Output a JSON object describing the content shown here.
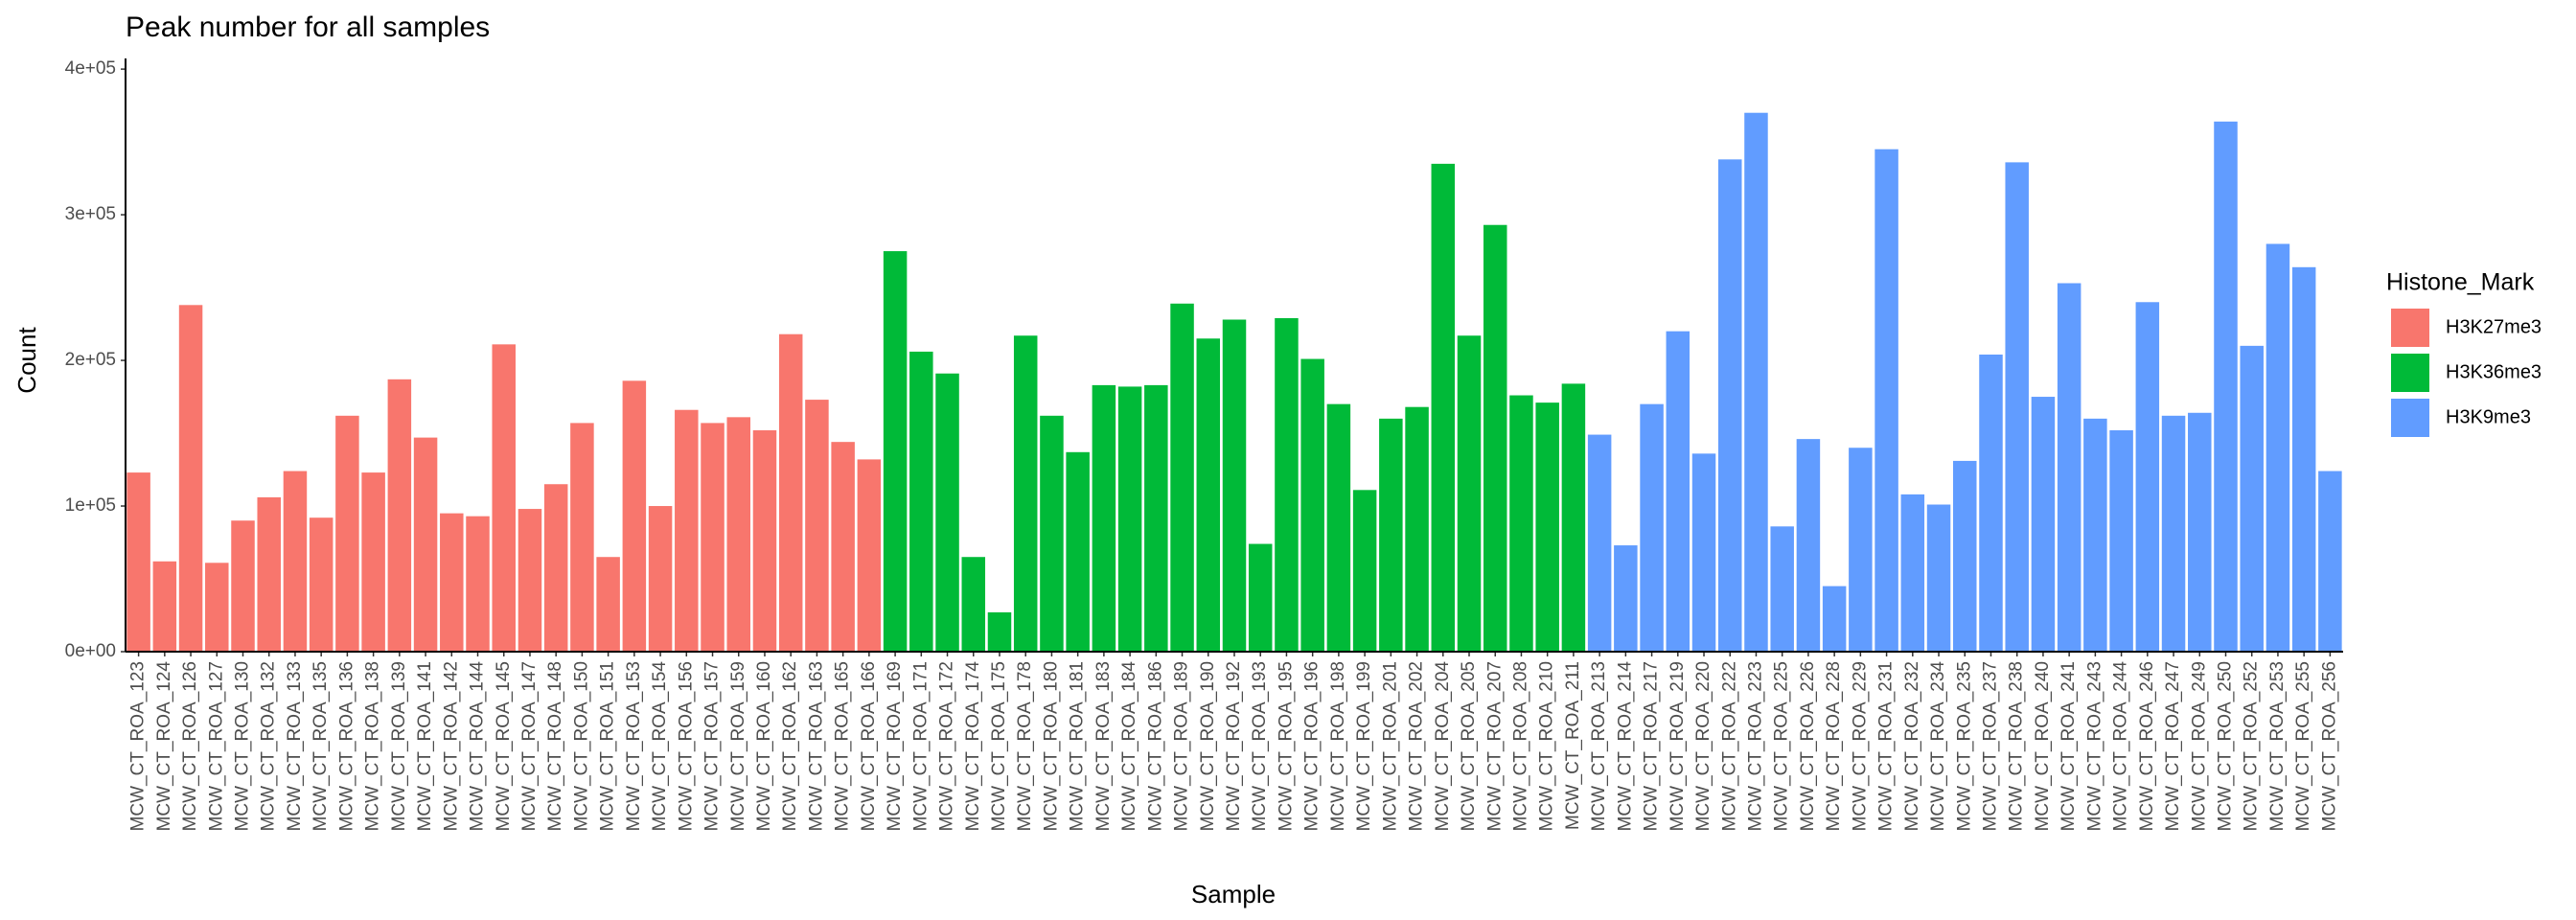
{
  "chart_data": {
    "type": "bar",
    "title": "Peak number for all samples",
    "x_label": "Sample",
    "y_label": "Count",
    "legend_title": "Histone_Mark",
    "legend_position": "right",
    "categories": [
      "MCW_CT_ROA_123",
      "MCW_CT_ROA_124",
      "MCW_CT_ROA_126",
      "MCW_CT_ROA_127",
      "MCW_CT_ROA_130",
      "MCW_CT_ROA_132",
      "MCW_CT_ROA_133",
      "MCW_CT_ROA_135",
      "MCW_CT_ROA_136",
      "MCW_CT_ROA_138",
      "MCW_CT_ROA_139",
      "MCW_CT_ROA_141",
      "MCW_CT_ROA_142",
      "MCW_CT_ROA_144",
      "MCW_CT_ROA_145",
      "MCW_CT_ROA_147",
      "MCW_CT_ROA_148",
      "MCW_CT_ROA_150",
      "MCW_CT_ROA_151",
      "MCW_CT_ROA_153",
      "MCW_CT_ROA_154",
      "MCW_CT_ROA_156",
      "MCW_CT_ROA_157",
      "MCW_CT_ROA_159",
      "MCW_CT_ROA_160",
      "MCW_CT_ROA_162",
      "MCW_CT_ROA_163",
      "MCW_CT_ROA_165",
      "MCW_CT_ROA_166",
      "MCW_CT_ROA_169",
      "MCW_CT_ROA_171",
      "MCW_CT_ROA_172",
      "MCW_CT_ROA_174",
      "MCW_CT_ROA_175",
      "MCW_CT_ROA_178",
      "MCW_CT_ROA_180",
      "MCW_CT_ROA_181",
      "MCW_CT_ROA_183",
      "MCW_CT_ROA_184",
      "MCW_CT_ROA_186",
      "MCW_CT_ROA_189",
      "MCW_CT_ROA_190",
      "MCW_CT_ROA_192",
      "MCW_CT_ROA_193",
      "MCW_CT_ROA_195",
      "MCW_CT_ROA_196",
      "MCW_CT_ROA_198",
      "MCW_CT_ROA_199",
      "MCW_CT_ROA_201",
      "MCW_CT_ROA_202",
      "MCW_CT_ROA_204",
      "MCW_CT_ROA_205",
      "MCW_CT_ROA_207",
      "MCW_CT_ROA_208",
      "MCW_CT_ROA_210",
      "MCW_CT_ROA_211",
      "MCW_CT_ROA_213",
      "MCW_CT_ROA_214",
      "MCW_CT_ROA_217",
      "MCW_CT_ROA_219",
      "MCW_CT_ROA_220",
      "MCW_CT_ROA_222",
      "MCW_CT_ROA_223",
      "MCW_CT_ROA_225",
      "MCW_CT_ROA_226",
      "MCW_CT_ROA_228",
      "MCW_CT_ROA_229",
      "MCW_CT_ROA_231",
      "MCW_CT_ROA_232",
      "MCW_CT_ROA_234",
      "MCW_CT_ROA_235",
      "MCW_CT_ROA_237",
      "MCW_CT_ROA_238",
      "MCW_CT_ROA_240",
      "MCW_CT_ROA_241",
      "MCW_CT_ROA_243",
      "MCW_CT_ROA_244",
      "MCW_CT_ROA_246",
      "MCW_CT_ROA_247",
      "MCW_CT_ROA_249",
      "MCW_CT_ROA_250",
      "MCW_CT_ROA_252",
      "MCW_CT_ROA_253",
      "MCW_CT_ROA_255",
      "MCW_CT_ROA_256"
    ],
    "series": [
      {
        "name": "H3K27me3",
        "color": "#F8766D",
        "values": [
          123000,
          62000,
          238000,
          61000,
          90000,
          106000,
          124000,
          92000,
          162000,
          123000,
          187000,
          147000,
          95000,
          93000,
          211000,
          98000,
          115000,
          157000,
          65000,
          186000,
          100000,
          166000,
          157000,
          161000,
          152000,
          218000,
          173000,
          144000,
          132000,
          null,
          null,
          null,
          null,
          null,
          null,
          null,
          null,
          null,
          null,
          null,
          null,
          null,
          null,
          null,
          null,
          null,
          null,
          null,
          null,
          null,
          null,
          null,
          null,
          null,
          null,
          null,
          null,
          null,
          null,
          null,
          null,
          null,
          null,
          null,
          null,
          null,
          null,
          null,
          null,
          null,
          null,
          null,
          null,
          null,
          null,
          null,
          null,
          null,
          null,
          null,
          null,
          null,
          null,
          null,
          null
        ]
      },
      {
        "name": "H3K36me3",
        "color": "#00BA38",
        "values": [
          null,
          null,
          null,
          null,
          null,
          null,
          null,
          null,
          null,
          null,
          null,
          null,
          null,
          null,
          null,
          null,
          null,
          null,
          null,
          null,
          null,
          null,
          null,
          null,
          null,
          null,
          null,
          null,
          null,
          275000,
          206000,
          191000,
          65000,
          27000,
          217000,
          162000,
          137000,
          183000,
          182000,
          183000,
          239000,
          215000,
          228000,
          74000,
          229000,
          201000,
          170000,
          111000,
          160000,
          168000,
          335000,
          217000,
          293000,
          176000,
          171000,
          184000,
          null,
          null,
          null,
          null,
          null,
          null,
          null,
          null,
          null,
          null,
          null,
          null,
          null,
          null,
          null,
          null,
          null,
          null,
          null,
          null,
          null,
          null,
          null,
          null,
          null,
          null,
          null,
          null,
          null
        ]
      },
      {
        "name": "H3K9me3",
        "color": "#619CFF",
        "values": [
          null,
          null,
          null,
          null,
          null,
          null,
          null,
          null,
          null,
          null,
          null,
          null,
          null,
          null,
          null,
          null,
          null,
          null,
          null,
          null,
          null,
          null,
          null,
          null,
          null,
          null,
          null,
          null,
          null,
          null,
          null,
          null,
          null,
          null,
          null,
          null,
          null,
          null,
          null,
          null,
          null,
          null,
          null,
          null,
          null,
          null,
          null,
          null,
          null,
          null,
          null,
          null,
          null,
          null,
          null,
          null,
          149000,
          73000,
          170000,
          220000,
          136000,
          338000,
          370000,
          86000,
          146000,
          45000,
          140000,
          345000,
          108000,
          101000,
          131000,
          204000,
          336000,
          175000,
          253000,
          160000,
          152000,
          240000,
          162000,
          164000,
          364000,
          210000,
          280000,
          264000,
          124000
        ]
      }
    ],
    "ylim": [
      0,
      406000
    ],
    "yticks": [
      {
        "value": 0,
        "label": "0e+00"
      },
      {
        "value": 100000,
        "label": "1e+05"
      },
      {
        "value": 200000,
        "label": "2e+05"
      },
      {
        "value": 300000,
        "label": "3e+05"
      },
      {
        "value": 400000,
        "label": "4e+05"
      }
    ],
    "grid": false
  }
}
